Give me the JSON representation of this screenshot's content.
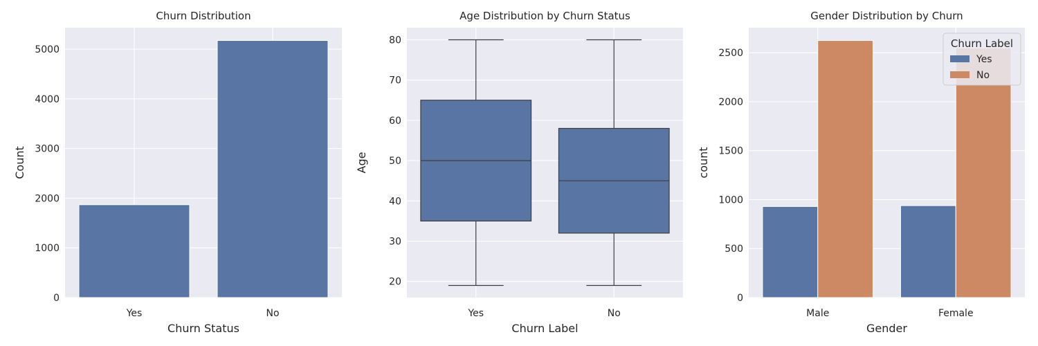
{
  "colors": {
    "blue": "#5875a4",
    "orange": "#cc8963",
    "whisker": "#3d3d3d"
  },
  "chart_data": [
    {
      "type": "bar",
      "title": "Churn Distribution",
      "xlabel": "Churn Status",
      "ylabel": "Count",
      "categories": [
        "Yes",
        "No"
      ],
      "values": [
        1869,
        5174
      ],
      "ylim": [
        0,
        5432
      ],
      "yticks": [
        0,
        1000,
        2000,
        3000,
        4000,
        5000
      ],
      "grid": true
    },
    {
      "type": "box",
      "title": "Age Distribution by Churn Status",
      "xlabel": "Churn Label",
      "ylabel": "Age",
      "categories": [
        "Yes",
        "No"
      ],
      "boxes": [
        {
          "min": 19,
          "q1": 35,
          "median": 50,
          "q3": 65,
          "max": 80
        },
        {
          "min": 19,
          "q1": 32,
          "median": 45,
          "q3": 58,
          "max": 80
        }
      ],
      "ylim": [
        16,
        83
      ],
      "yticks": [
        20,
        30,
        40,
        50,
        60,
        70,
        80
      ],
      "grid": true
    },
    {
      "type": "bar",
      "title": "Gender Distribution by Churn",
      "xlabel": "Gender",
      "ylabel": "count",
      "categories": [
        "Male",
        "Female"
      ],
      "series": [
        {
          "name": "Yes",
          "values": [
            930,
            939
          ]
        },
        {
          "name": "No",
          "values": [
            2625,
            2549
          ]
        }
      ],
      "ylim": [
        0,
        2756
      ],
      "yticks": [
        0,
        500,
        1000,
        1500,
        2000,
        2500
      ],
      "legend_title": "Churn Label",
      "legend_position": "top-right",
      "grid": true
    }
  ]
}
